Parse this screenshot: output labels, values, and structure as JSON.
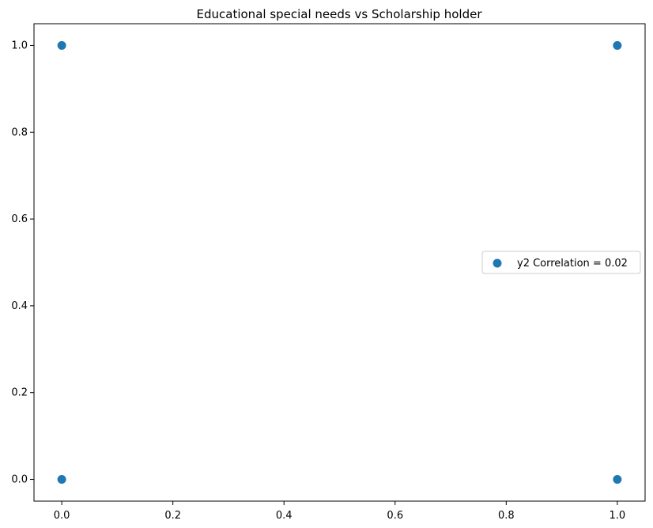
{
  "chart_data": {
    "type": "scatter",
    "title": "Educational special needs vs Scholarship holder",
    "xlabel": "",
    "ylabel": "",
    "xlim": [
      -0.05,
      1.05
    ],
    "ylim": [
      -0.05,
      1.05
    ],
    "xticks": [
      0.0,
      0.2,
      0.4,
      0.6,
      0.8,
      1.0
    ],
    "xtick_labels": [
      "0.0",
      "0.2",
      "0.4",
      "0.6",
      "0.8",
      "1.0"
    ],
    "yticks": [
      0.0,
      0.2,
      0.4,
      0.6,
      0.8,
      1.0
    ],
    "ytick_labels": [
      "0.0",
      "0.2",
      "0.4",
      "0.6",
      "0.8",
      "1.0"
    ],
    "grid": false,
    "legend_position": "center-right",
    "series": [
      {
        "name": "y2 Correlation = 0.02",
        "color": "#1f77b4",
        "points": [
          {
            "x": 0,
            "y": 1
          },
          {
            "x": 1,
            "y": 1
          },
          {
            "x": 0,
            "y": 0
          },
          {
            "x": 1,
            "y": 0
          }
        ]
      }
    ]
  }
}
